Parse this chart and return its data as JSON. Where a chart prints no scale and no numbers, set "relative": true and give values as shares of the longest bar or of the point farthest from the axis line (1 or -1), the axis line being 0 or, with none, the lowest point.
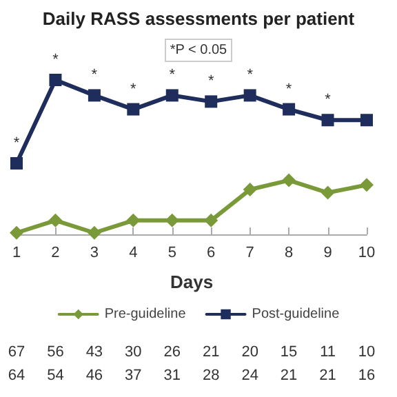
{
  "chart_data": {
    "type": "line",
    "title": "Daily RASS assessments per patient",
    "xlabel": "Days",
    "relative": true,
    "grid": false,
    "legend": "bottom",
    "categories": [
      "1",
      "2",
      "3",
      "4",
      "5",
      "6",
      "7",
      "8",
      "9",
      "10"
    ],
    "series": [
      {
        "name": "Pre-guideline",
        "color": "#7a9a3a",
        "marker": "diamond",
        "values": [
          0.01,
          0.09,
          0.01,
          0.09,
          0.09,
          0.09,
          0.29,
          0.35,
          0.27,
          0.32
        ]
      },
      {
        "name": "Post-guideline",
        "color": "#1f2d5c",
        "marker": "square",
        "values": [
          0.46,
          1.0,
          0.9,
          0.81,
          0.9,
          0.86,
          0.9,
          0.81,
          0.74,
          0.74
        ]
      }
    ],
    "annotations": [
      "*P < 0.05",
      {
        "text": "*",
        "x": "1",
        "y": 0.46
      },
      {
        "text": "*",
        "x": "2",
        "y": 1.0
      },
      {
        "text": "*",
        "x": "3",
        "y": 0.9
      },
      {
        "text": "*",
        "x": "4",
        "y": 0.81
      },
      {
        "text": "*",
        "x": "5",
        "y": 0.9
      },
      {
        "text": "*",
        "x": "6",
        "y": 0.86
      },
      {
        "text": "*",
        "x": "7",
        "y": 0.9
      },
      {
        "text": "*",
        "x": "8",
        "y": 0.81
      },
      {
        "text": "*",
        "x": "9",
        "y": 0.74
      },
      "67 56 43 30 26 21 20 15 11 10",
      "64 54 46 37 31 28 24 21 21 16"
    ]
  }
}
